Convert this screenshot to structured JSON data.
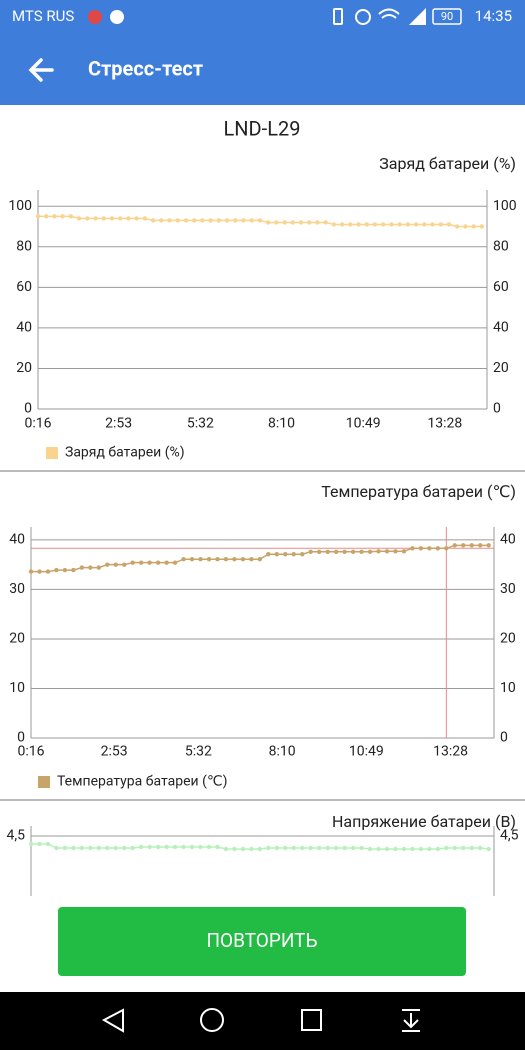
{
  "status_bar": {
    "carrier": "MTS RUS",
    "battery": "90",
    "time": "14:35"
  },
  "app_bar": {
    "title": "Стресс-тест"
  },
  "device": "LND-L29",
  "button": "ПОВТОРИТЬ",
  "chart_data": [
    {
      "type": "line",
      "title": "Заряд батареи (%)",
      "x": [
        16,
        32,
        48,
        64,
        80,
        96,
        112,
        128,
        144,
        160,
        176,
        192,
        208,
        224,
        240,
        256,
        272,
        288,
        304,
        320,
        336,
        352,
        368,
        384,
        400,
        416,
        432,
        448,
        464,
        480,
        496,
        512,
        528,
        544,
        560,
        576,
        592,
        608,
        624,
        640,
        656,
        672,
        688,
        704,
        720,
        736,
        752,
        768,
        784,
        800,
        816,
        832,
        848,
        864,
        880
      ],
      "series": [
        {
          "name": "Заряд батареи (%)",
          "color": "#f9d48e",
          "values": [
            95,
            95,
            95,
            95,
            95,
            94,
            94,
            94,
            94,
            94,
            94,
            94,
            94,
            94,
            93,
            93,
            93,
            93,
            93,
            93,
            93,
            93,
            93,
            93,
            93,
            93,
            93,
            93,
            92,
            92,
            92,
            92,
            92,
            92,
            92,
            92,
            91,
            91,
            91,
            91,
            91,
            91,
            91,
            91,
            91,
            91,
            91,
            91,
            91,
            91,
            91,
            90,
            90,
            90,
            90
          ]
        }
      ],
      "xlim": [
        16,
        890
      ],
      "ylim": [
        0,
        108
      ],
      "xticks": [
        {
          "value": 16,
          "label": "0:16"
        },
        {
          "value": 173,
          "label": "2:53"
        },
        {
          "value": 332,
          "label": "5:32"
        },
        {
          "value": 490,
          "label": "8:10"
        },
        {
          "value": 649,
          "label": "10:49"
        },
        {
          "value": 808,
          "label": "13:28"
        }
      ],
      "yticks": [
        0,
        20,
        40,
        60,
        80,
        100
      ],
      "grid": true
    },
    {
      "type": "line",
      "title": "Температура батареи (℃)",
      "x": [
        16,
        32,
        48,
        64,
        80,
        96,
        112,
        128,
        144,
        160,
        176,
        192,
        208,
        224,
        240,
        256,
        272,
        288,
        304,
        320,
        336,
        352,
        368,
        384,
        400,
        416,
        432,
        448,
        464,
        480,
        496,
        512,
        528,
        544,
        560,
        576,
        592,
        608,
        624,
        640,
        656,
        672,
        688,
        704,
        720,
        736,
        752,
        768,
        784,
        800,
        816,
        832,
        848,
        864,
        880
      ],
      "series": [
        {
          "name": "Температура батареи (℃)",
          "color": "#c9a469",
          "values": [
            33.6,
            33.6,
            33.6,
            33.9,
            33.9,
            33.9,
            34.4,
            34.4,
            34.4,
            35,
            35,
            35,
            35.4,
            35.4,
            35.4,
            35.4,
            35.4,
            35.4,
            36.1,
            36.1,
            36.1,
            36.1,
            36.1,
            36.1,
            36.1,
            36.1,
            36.1,
            36.1,
            37.1,
            37.1,
            37.1,
            37.1,
            37.1,
            37.6,
            37.6,
            37.6,
            37.6,
            37.6,
            37.6,
            37.6,
            37.6,
            37.7,
            37.7,
            37.7,
            37.7,
            38.3,
            38.3,
            38.3,
            38.3,
            38.3,
            38.9,
            38.9,
            38.9,
            38.9,
            38.9
          ]
        }
      ],
      "xlim": [
        16,
        890
      ],
      "ylim": [
        0,
        42.6
      ],
      "xticks": [
        {
          "value": 16,
          "label": "0:16"
        },
        {
          "value": 173,
          "label": "2:53"
        },
        {
          "value": 332,
          "label": "5:32"
        },
        {
          "value": 490,
          "label": "8:10"
        },
        {
          "value": 649,
          "label": "10:49"
        },
        {
          "value": 808,
          "label": "13:28"
        }
      ],
      "yticks": [
        0,
        10,
        20,
        30,
        40
      ],
      "grid": true,
      "highlight_index": 49,
      "highlight_color": "#e8898a"
    },
    {
      "type": "line",
      "title": "Напряжение батареи (В)",
      "x": [
        16,
        32,
        48,
        64,
        80,
        96,
        112,
        128,
        144,
        160,
        176,
        192,
        208,
        224,
        240,
        256,
        272,
        288,
        304,
        320,
        336,
        352,
        368,
        384,
        400,
        416,
        432,
        448,
        464,
        480,
        496,
        512,
        528,
        544,
        560,
        576,
        592,
        608,
        624,
        640,
        656,
        672,
        688,
        704,
        720,
        736,
        752,
        768,
        784,
        800,
        816,
        832,
        848,
        864,
        880
      ],
      "series": [
        {
          "name": "Напряжение батареи (В)",
          "color": "#b9f0b9",
          "values": [
            4.42,
            4.42,
            4.42,
            4.38,
            4.38,
            4.38,
            4.38,
            4.38,
            4.38,
            4.38,
            4.38,
            4.38,
            4.38,
            4.39,
            4.39,
            4.39,
            4.39,
            4.39,
            4.39,
            4.39,
            4.39,
            4.39,
            4.39,
            4.37,
            4.37,
            4.37,
            4.37,
            4.37,
            4.38,
            4.38,
            4.38,
            4.38,
            4.38,
            4.38,
            4.38,
            4.38,
            4.38,
            4.38,
            4.38,
            4.38,
            4.37,
            4.37,
            4.37,
            4.37,
            4.37,
            4.37,
            4.37,
            4.37,
            4.37,
            4.38,
            4.38,
            4.38,
            4.38,
            4.38,
            4.37
          ]
        }
      ],
      "xlim": [
        16,
        890
      ],
      "ylim": [
        2.6,
        4.6
      ],
      "yticks": [
        {
          "value": 4.5,
          "label": "4,5"
        }
      ],
      "grid": true
    }
  ]
}
